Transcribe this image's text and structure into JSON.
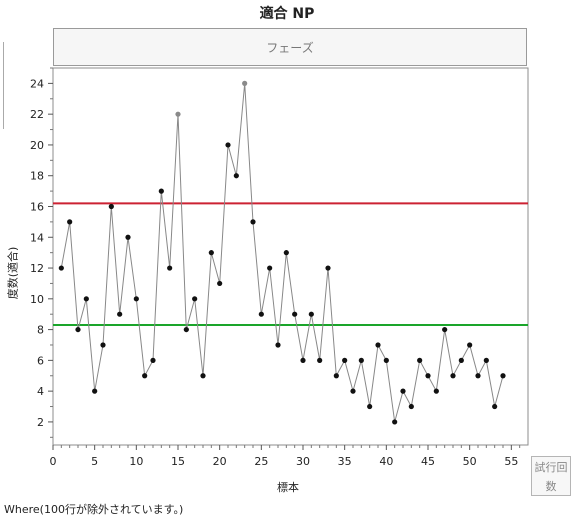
{
  "title": "適合   NP",
  "phase_label": "フェーズ",
  "legend_label": "試行回数",
  "where_note": "Where(100行が除外されています。)",
  "colors": {
    "line": "#888888",
    "point": "#111111",
    "excluded_point": "#8a8a8a",
    "ucl": "#cc2233",
    "center": "#1aa52a"
  },
  "chart_data": {
    "type": "line",
    "title": "適合   NP",
    "xlabel": "標本",
    "ylabel": "度数(適合)",
    "xlim": [
      0,
      57
    ],
    "ylim": [
      0.5,
      25
    ],
    "xticks": [
      0,
      5,
      10,
      15,
      20,
      25,
      30,
      35,
      40,
      45,
      50,
      55
    ],
    "yticks": [
      2,
      4,
      6,
      8,
      10,
      12,
      14,
      16,
      18,
      20,
      22,
      24
    ],
    "grid": false,
    "limits": {
      "ucl": 16.2,
      "center": 8.3
    },
    "x": [
      1,
      2,
      3,
      4,
      5,
      6,
      7,
      8,
      9,
      10,
      11,
      12,
      13,
      14,
      15,
      16,
      17,
      18,
      19,
      20,
      21,
      22,
      23,
      24,
      25,
      26,
      27,
      28,
      29,
      30,
      31,
      32,
      33,
      34,
      35,
      36,
      37,
      38,
      39,
      40,
      41,
      42,
      43,
      44,
      45,
      46,
      47,
      48,
      49,
      50,
      51,
      52,
      53,
      54
    ],
    "values": [
      12,
      15,
      8,
      10,
      4,
      7,
      16,
      9,
      14,
      10,
      5,
      6,
      17,
      12,
      22,
      8,
      10,
      5,
      13,
      11,
      20,
      18,
      24,
      15,
      9,
      12,
      7,
      13,
      9,
      6,
      9,
      6,
      12,
      5,
      6,
      4,
      6,
      3,
      7,
      6,
      2,
      4,
      3,
      6,
      5,
      4,
      8,
      5,
      6,
      7,
      5,
      6,
      3,
      5
    ],
    "highlighted_x": [
      15,
      23
    ]
  }
}
